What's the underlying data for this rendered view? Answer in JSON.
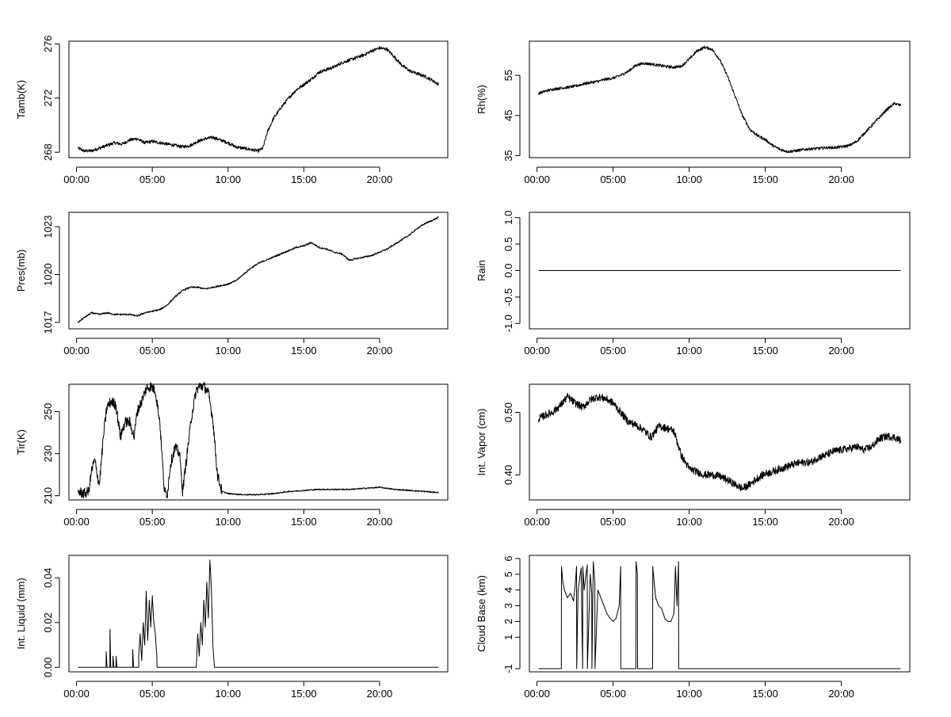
{
  "chart_data": [
    {
      "type": "line",
      "ylabel": "Tamb(K)",
      "x_ticks": [
        "00:00",
        "05:00",
        "10:00",
        "15:00",
        "20:00"
      ],
      "y_ticks": [
        268,
        272,
        276
      ],
      "xlim": [
        -0.5,
        24.5
      ],
      "ylim": [
        267.6,
        276.2
      ],
      "color": "#000000",
      "noise": 0.12,
      "series": [
        {
          "x": [
            0.1,
            0.5,
            1.0,
            1.5,
            2.0,
            2.5,
            3.0,
            3.5,
            4.0,
            4.5,
            5.0,
            5.5,
            6.0,
            6.5,
            7.0,
            7.5,
            8.0,
            8.5,
            9.0,
            9.5,
            10.0,
            10.5,
            11.0,
            11.5,
            12.0,
            12.3,
            12.6,
            13.0,
            13.5,
            14.0,
            14.5,
            15.0,
            15.5,
            16.0,
            16.5,
            17.0,
            17.5,
            18.0,
            18.5,
            19.0,
            19.5,
            20.0,
            20.5,
            21.0,
            21.5,
            22.0,
            22.5,
            23.0,
            23.5,
            23.9
          ],
          "y": [
            268.3,
            268.1,
            268.1,
            268.3,
            268.5,
            268.7,
            268.6,
            268.9,
            269.0,
            268.7,
            268.8,
            268.7,
            268.6,
            268.5,
            268.4,
            268.5,
            268.8,
            269.0,
            269.1,
            268.9,
            268.7,
            268.4,
            268.3,
            268.2,
            268.1,
            268.3,
            269.5,
            270.5,
            271.3,
            272.0,
            272.6,
            273.0,
            273.4,
            273.9,
            274.1,
            274.3,
            274.6,
            274.8,
            275.0,
            275.2,
            275.5,
            275.7,
            275.6,
            275.0,
            274.4,
            274.0,
            273.8,
            273.6,
            273.3,
            273.0
          ]
        }
      ]
    },
    {
      "type": "line",
      "ylabel": "Rh(%)",
      "x_ticks": [
        "00:00",
        "05:00",
        "10:00",
        "15:00",
        "20:00"
      ],
      "y_ticks": [
        35,
        45,
        55
      ],
      "xlim": [
        -0.5,
        24.5
      ],
      "ylim": [
        34.5,
        63.5
      ],
      "color": "#000000",
      "noise": 0.35,
      "series": [
        {
          "x": [
            0.1,
            0.5,
            1.0,
            1.5,
            2.0,
            2.5,
            3.0,
            3.5,
            4.0,
            4.5,
            5.0,
            5.5,
            6.0,
            6.5,
            7.0,
            7.5,
            8.0,
            8.5,
            9.0,
            9.5,
            10.0,
            10.5,
            11.0,
            11.5,
            12.0,
            12.5,
            13.0,
            13.5,
            14.0,
            14.5,
            15.0,
            15.5,
            16.0,
            16.5,
            17.0,
            17.5,
            18.0,
            18.5,
            19.0,
            19.5,
            20.0,
            20.5,
            21.0,
            21.5,
            22.0,
            22.5,
            23.0,
            23.5,
            23.9
          ],
          "y": [
            50.5,
            51.0,
            51.5,
            51.8,
            52.0,
            52.3,
            52.8,
            53.2,
            53.5,
            54.0,
            54.3,
            55.0,
            56.0,
            57.5,
            58.0,
            57.8,
            57.5,
            57.2,
            57.0,
            57.3,
            59.0,
            61.0,
            62.0,
            61.5,
            59.0,
            55.0,
            50.0,
            45.0,
            41.5,
            40.0,
            39.0,
            37.5,
            36.5,
            36.0,
            36.2,
            36.5,
            36.7,
            36.8,
            37.0,
            37.0,
            37.2,
            37.5,
            38.5,
            40.5,
            42.5,
            44.5,
            46.5,
            48.0,
            47.5
          ]
        }
      ]
    },
    {
      "type": "line",
      "ylabel": "Pres(mb)",
      "x_ticks": [
        "00:00",
        "05:00",
        "10:00",
        "15:00",
        "20:00"
      ],
      "y_ticks": [
        1017,
        1020,
        1023
      ],
      "xlim": [
        -0.5,
        24.5
      ],
      "ylim": [
        1016.6,
        1023.9
      ],
      "color": "#000000",
      "noise": 0.05,
      "series": [
        {
          "x": [
            0.1,
            0.5,
            1.0,
            1.5,
            2.0,
            2.5,
            3.0,
            3.5,
            4.0,
            4.5,
            5.0,
            5.5,
            6.0,
            6.5,
            7.0,
            7.5,
            8.0,
            8.5,
            9.0,
            9.5,
            10.0,
            10.5,
            11.0,
            11.5,
            12.0,
            12.5,
            13.0,
            13.5,
            14.0,
            14.5,
            15.0,
            15.5,
            16.0,
            16.5,
            17.0,
            17.5,
            18.0,
            18.5,
            19.0,
            19.5,
            20.0,
            20.5,
            21.0,
            21.5,
            22.0,
            22.5,
            23.0,
            23.5,
            23.9
          ],
          "y": [
            1017.0,
            1017.3,
            1017.6,
            1017.5,
            1017.6,
            1017.5,
            1017.5,
            1017.5,
            1017.4,
            1017.6,
            1017.7,
            1017.8,
            1018.1,
            1018.6,
            1019.0,
            1019.2,
            1019.2,
            1019.1,
            1019.2,
            1019.3,
            1019.4,
            1019.6,
            1020.0,
            1020.4,
            1020.7,
            1020.9,
            1021.1,
            1021.3,
            1021.5,
            1021.7,
            1021.8,
            1022.0,
            1021.7,
            1021.6,
            1021.4,
            1021.3,
            1020.9,
            1021.0,
            1021.1,
            1021.2,
            1021.4,
            1021.6,
            1021.9,
            1022.2,
            1022.5,
            1022.9,
            1023.2,
            1023.4,
            1023.6
          ]
        }
      ]
    },
    {
      "type": "line",
      "ylabel": "Rain",
      "x_ticks": [
        "00:00",
        "05:00",
        "10:00",
        "15:00",
        "20:00"
      ],
      "y_ticks": [
        "-1.0",
        "-0.5",
        "0.0",
        "0.5",
        "1.0"
      ],
      "y_tick_values": [
        -1.0,
        -0.5,
        0.0,
        0.5,
        1.0
      ],
      "xlim": [
        -0.5,
        24.5
      ],
      "ylim": [
        -1.1,
        1.1
      ],
      "color": "#000000",
      "noise": 0,
      "series": [
        {
          "x": [
            0.1,
            23.9
          ],
          "y": [
            0.0,
            0.0
          ]
        }
      ]
    },
    {
      "type": "line",
      "ylabel": "Tir(K)",
      "x_ticks": [
        "00:00",
        "05:00",
        "10:00",
        "15:00",
        "20:00"
      ],
      "y_ticks": [
        210,
        230,
        250
      ],
      "xlim": [
        -0.5,
        24.5
      ],
      "ylim": [
        208.0,
        263.0
      ],
      "color": "#000000",
      "noise": 2.5,
      "noise_until": 9.6,
      "series": [
        {
          "x": [
            0.1,
            0.5,
            0.8,
            1.0,
            1.2,
            1.5,
            1.8,
            2.0,
            2.3,
            2.6,
            2.9,
            3.2,
            3.5,
            3.8,
            4.0,
            4.3,
            4.6,
            4.9,
            5.2,
            5.5,
            5.8,
            6.0,
            6.2,
            6.5,
            6.8,
            7.0,
            7.3,
            7.6,
            7.9,
            8.1,
            8.4,
            8.7,
            9.0,
            9.3,
            9.6,
            10.0,
            11.0,
            12.0,
            13.0,
            14.0,
            15.0,
            16.0,
            17.0,
            18.0,
            19.0,
            20.0,
            21.0,
            22.0,
            23.0,
            23.9
          ],
          "y": [
            212,
            211,
            212,
            222,
            227,
            215,
            240,
            252,
            255,
            253,
            238,
            245,
            245,
            238,
            250,
            255,
            261,
            262,
            260,
            245,
            212,
            211,
            225,
            233,
            230,
            212,
            230,
            248,
            260,
            262,
            262,
            259,
            246,
            220,
            212,
            211,
            210.5,
            210.5,
            211,
            212,
            212.5,
            213,
            213,
            213,
            213.5,
            214,
            213,
            212.5,
            212,
            211.5
          ]
        }
      ]
    },
    {
      "type": "line",
      "ylabel": "Int. Vapor (cm)",
      "x_ticks": [
        "00:00",
        "05:00",
        "10:00",
        "15:00",
        "20:00"
      ],
      "y_tick_values": [
        0.4,
        0.5
      ],
      "y_ticks": [
        "0.40",
        "0.50"
      ],
      "xlim": [
        -0.5,
        24.5
      ],
      "ylim": [
        0.36,
        0.545
      ],
      "color": "#000000",
      "noise": 0.006,
      "series": [
        {
          "x": [
            0.1,
            0.5,
            1.0,
            1.5,
            2.0,
            2.5,
            3.0,
            3.5,
            4.0,
            4.5,
            5.0,
            5.5,
            6.0,
            6.5,
            7.0,
            7.5,
            8.0,
            8.5,
            9.0,
            9.5,
            10.0,
            10.5,
            11.0,
            11.5,
            12.0,
            12.5,
            13.0,
            13.5,
            14.0,
            14.5,
            15.0,
            15.5,
            16.0,
            16.5,
            17.0,
            17.5,
            18.0,
            18.5,
            19.0,
            19.5,
            20.0,
            20.5,
            21.0,
            21.5,
            22.0,
            22.5,
            23.0,
            23.5,
            23.9
          ],
          "y": [
            0.49,
            0.495,
            0.5,
            0.51,
            0.525,
            0.515,
            0.508,
            0.52,
            0.525,
            0.522,
            0.515,
            0.5,
            0.485,
            0.48,
            0.472,
            0.46,
            0.478,
            0.475,
            0.47,
            0.43,
            0.41,
            0.405,
            0.4,
            0.4,
            0.398,
            0.392,
            0.385,
            0.378,
            0.385,
            0.395,
            0.402,
            0.405,
            0.41,
            0.414,
            0.418,
            0.42,
            0.42,
            0.428,
            0.432,
            0.438,
            0.44,
            0.442,
            0.445,
            0.44,
            0.445,
            0.458,
            0.462,
            0.46,
            0.455
          ]
        }
      ]
    },
    {
      "type": "line",
      "ylabel": "Int. Liquid (mm)",
      "x_ticks": [
        "00:00",
        "05:00",
        "10:00",
        "15:00",
        "20:00"
      ],
      "y_tick_values": [
        0.0,
        0.02,
        0.04
      ],
      "y_ticks": [
        "0.00",
        "0.02",
        "0.04"
      ],
      "xlim": [
        -0.5,
        24.5
      ],
      "ylim": [
        -0.002,
        0.05
      ],
      "color": "#000000",
      "noise": 0,
      "series": [
        {
          "x": [
            0.1,
            1.95,
            1.96,
            2.0,
            2.01,
            2.2,
            2.21,
            2.25,
            2.26,
            2.4,
            2.41,
            2.45,
            2.46,
            2.6,
            2.61,
            2.65,
            2.66,
            3.7,
            3.71,
            3.75,
            3.76,
            4.1,
            4.11,
            4.2,
            4.3,
            4.4,
            4.5,
            4.6,
            4.7,
            4.8,
            4.9,
            5.0,
            5.1,
            5.2,
            5.3,
            5.31,
            7.9,
            8.0,
            8.1,
            8.2,
            8.3,
            8.4,
            8.5,
            8.6,
            8.7,
            8.8,
            8.9,
            9.0,
            9.1,
            23.9
          ],
          "y": [
            0,
            0,
            0.007,
            0.002,
            0,
            0,
            0.017,
            0.003,
            0,
            0,
            0.005,
            0.002,
            0,
            0,
            0.005,
            0.002,
            0,
            0,
            0.008,
            0.002,
            0,
            0,
            0.006,
            0.015,
            0.003,
            0.02,
            0.01,
            0.034,
            0.012,
            0.03,
            0.018,
            0.032,
            0.02,
            0.015,
            0.005,
            0,
            0,
            0.015,
            0.005,
            0.02,
            0.01,
            0.03,
            0.018,
            0.038,
            0.022,
            0.048,
            0.035,
            0.01,
            0,
            0
          ]
        }
      ]
    },
    {
      "type": "line",
      "ylabel": "Cloud Base (km)",
      "x_ticks": [
        "00:00",
        "05:00",
        "10:00",
        "15:00",
        "20:00"
      ],
      "y_tick_values": [
        -1,
        1,
        2,
        3,
        4,
        5,
        6
      ],
      "y_ticks": [
        "-1",
        "1",
        "2",
        "3",
        "4",
        "5",
        "6"
      ],
      "xlim": [
        -0.5,
        24.5
      ],
      "ylim": [
        -1.2,
        6.2
      ],
      "color": "#000000",
      "noise": 0,
      "series": [
        {
          "x": [
            0.1,
            1.6,
            1.61,
            1.7,
            1.8,
            2.0,
            2.2,
            2.4,
            2.5,
            2.6,
            2.61,
            2.7,
            2.9,
            3.0,
            3.01,
            3.1,
            3.3,
            3.31,
            3.5,
            3.6,
            3.61,
            3.7,
            3.8,
            3.81,
            4.0,
            4.2,
            4.4,
            4.6,
            4.8,
            5.0,
            5.2,
            5.4,
            5.5,
            5.51,
            6.5,
            6.51,
            6.6,
            6.61,
            7.6,
            7.61,
            7.7,
            7.8,
            8.0,
            8.2,
            8.4,
            8.6,
            8.8,
            9.0,
            9.1,
            9.2,
            9.3,
            9.31,
            23.9
          ],
          "y": [
            -1,
            -1,
            5.5,
            4.5,
            4.0,
            3.5,
            3.8,
            3.3,
            4.2,
            5.5,
            -1,
            4.0,
            5.4,
            -1,
            5.5,
            4.0,
            5.6,
            -1,
            5.0,
            3.8,
            -1,
            5.8,
            4.5,
            -1,
            4.0,
            3.5,
            3.0,
            2.5,
            2.2,
            2.0,
            2.2,
            3.0,
            5.5,
            -1,
            -1,
            5.8,
            5.0,
            -1,
            -1,
            5.5,
            4.5,
            3.5,
            3.0,
            2.8,
            2.2,
            2.0,
            2.0,
            2.5,
            5.5,
            3.0,
            5.8,
            -1,
            -1
          ]
        }
      ]
    }
  ]
}
